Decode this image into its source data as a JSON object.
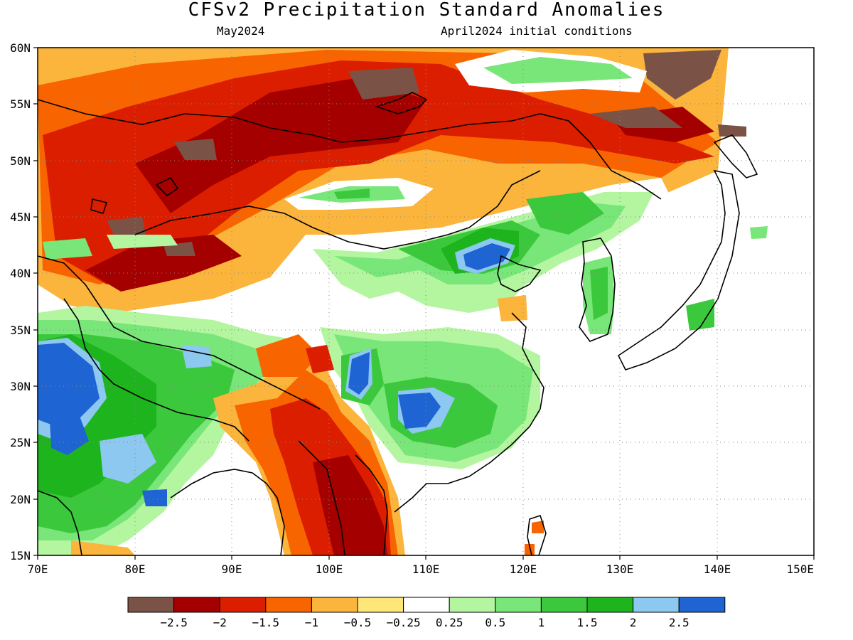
{
  "title": "CFSv2 Precipitation Standard Anomalies",
  "subtitle_left": "May2024",
  "subtitle_right": "April2024 initial conditions",
  "axes": {
    "x_ticks": [
      "70E",
      "80E",
      "90E",
      "100E",
      "110E",
      "120E",
      "130E",
      "140E",
      "150E"
    ],
    "y_ticks": [
      "60N",
      "55N",
      "50N",
      "45N",
      "40N",
      "35N",
      "30N",
      "25N",
      "20N",
      "15N"
    ],
    "lon_range": [
      70,
      150
    ],
    "lat_range": [
      15,
      60
    ],
    "grid": "dotted"
  },
  "colorbar": {
    "colors": [
      "#7b5246",
      "#a50000",
      "#dc1e00",
      "#f86400",
      "#fbb43c",
      "#fee678",
      "#ffffff",
      "#b4f5a0",
      "#78e678",
      "#3cc83c",
      "#1eb41e",
      "#8cc8f0",
      "#1e64d2"
    ],
    "labels": [
      "−2.5",
      "−2",
      "−1.5",
      "−1",
      "−0.5",
      "−0.25",
      "0.25",
      "0.5",
      "1",
      "1.5",
      "2",
      "2.5"
    ]
  },
  "legend_note": "standard anomaly shading"
}
